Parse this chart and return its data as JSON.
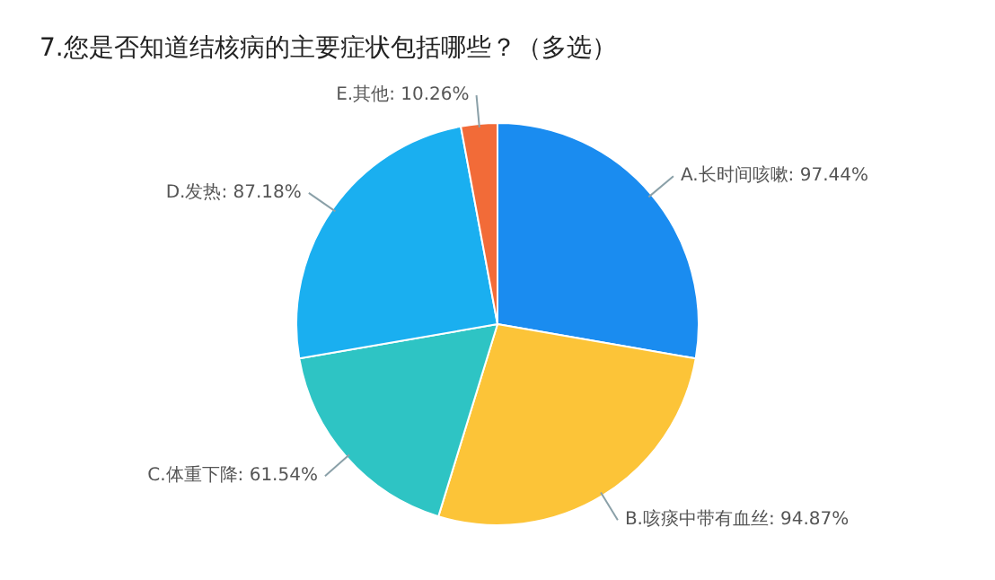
{
  "chart_data": {
    "type": "pie",
    "title": "7.您是否知道结核病的主要症状包括哪些？（多选）",
    "categories": [
      "A.长时间咳嗽",
      "B.咳痰中带有血丝",
      "C.体重下降",
      "D.发热",
      "E.其他"
    ],
    "values": [
      97.44,
      94.87,
      61.54,
      87.18,
      10.26
    ],
    "value_labels": [
      "97.44%",
      "94.87%",
      "61.54%",
      "87.18%",
      "10.26%"
    ],
    "colors": [
      "#1a8cf0",
      "#fcc438",
      "#2ec4c4",
      "#1aaff0",
      "#f26b38"
    ],
    "legend": false
  }
}
